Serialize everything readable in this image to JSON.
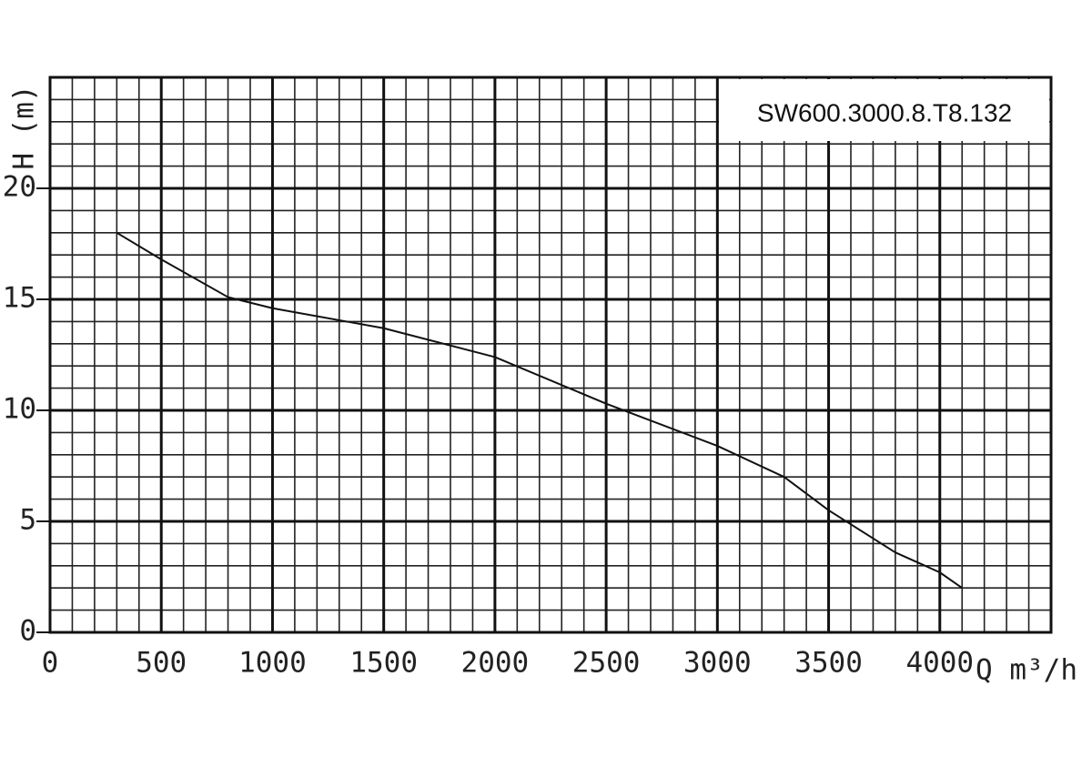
{
  "chart_data": {
    "type": "line",
    "title": "SW600.3000.8.T8.132",
    "x_label": "Q m³/h",
    "y_label": "H (m)",
    "x": [
      300,
      500,
      800,
      1000,
      1500,
      2000,
      2500,
      3000,
      3300,
      3500,
      3800,
      4000,
      4100
    ],
    "values": [
      18.0,
      16.8,
      15.1,
      14.6,
      13.7,
      12.4,
      10.3,
      8.4,
      7.0,
      5.5,
      3.6,
      2.7,
      2.0
    ],
    "color": "#111111",
    "xlim": [
      0,
      4500
    ],
    "ylim": [
      0,
      25
    ],
    "xticks": [
      0,
      500,
      1000,
      1500,
      2000,
      2500,
      3000,
      3500,
      4000
    ],
    "yticks": [
      0,
      5,
      10,
      15,
      20
    ],
    "grid": true
  }
}
